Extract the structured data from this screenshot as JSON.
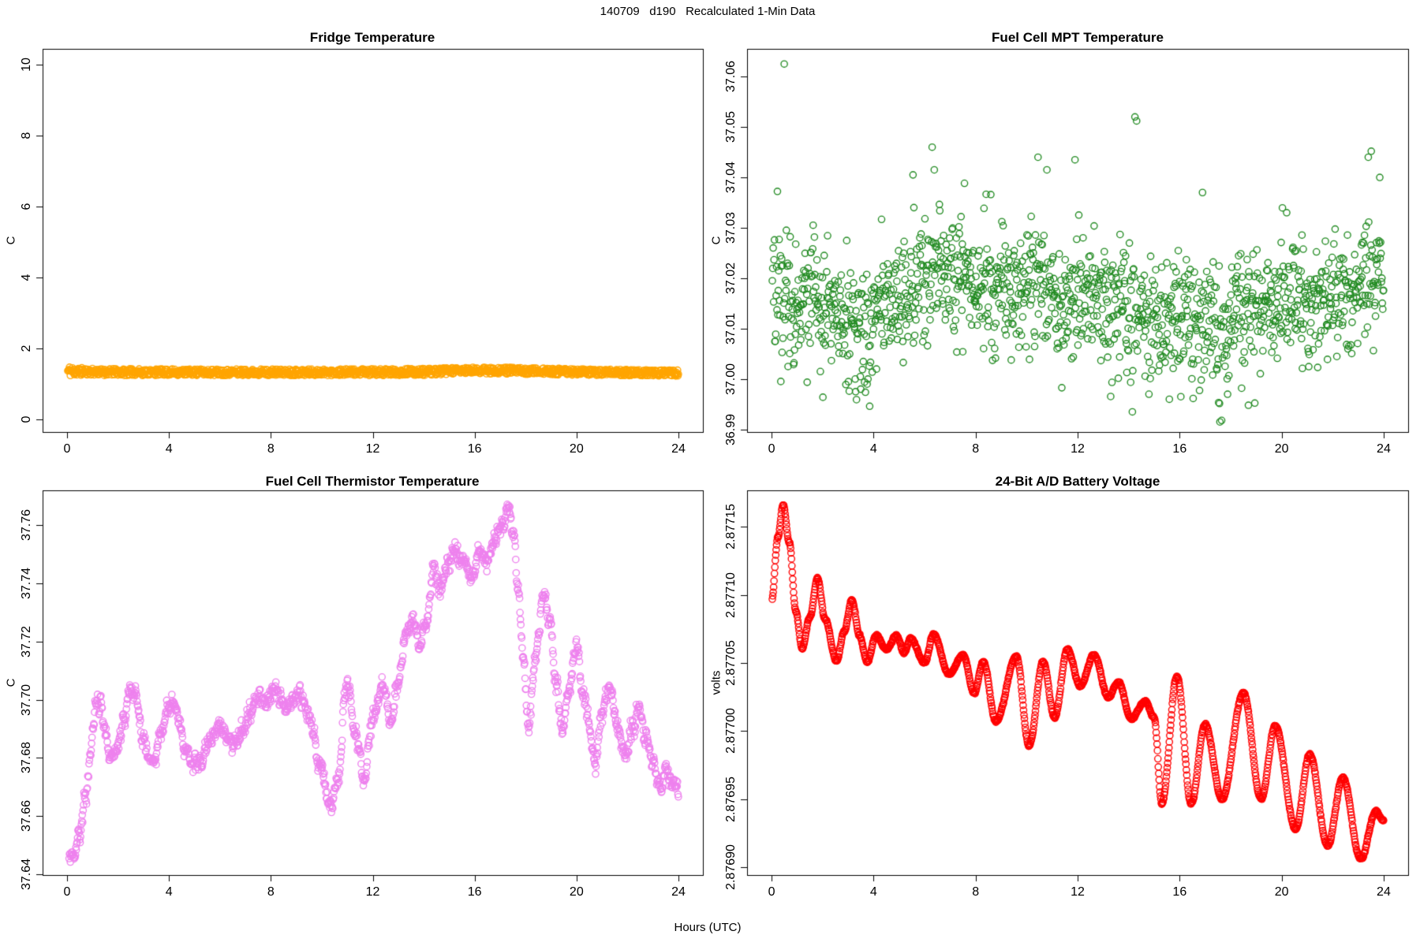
{
  "main_title": "140709   d190   Recalculated 1-Min Data",
  "xlabel": "Hours (UTC)",
  "background_color": "#FFFFFF",
  "axis_color": "#000000",
  "chart_data": [
    {
      "type": "scatter",
      "title": "Fridge Temperature",
      "ylabel": "C",
      "point_color": "#FFA500",
      "marker": "open-circle",
      "grid": false,
      "xlim": [
        -0.96,
        24.96
      ],
      "ylim": [
        -0.36,
        10.44
      ],
      "xtick_values": [
        0,
        4,
        8,
        12,
        16,
        20,
        24
      ],
      "xtick_labels": [
        "0",
        "4",
        "8",
        "12",
        "16",
        "20",
        "24"
      ],
      "ytick_values": [
        0,
        2,
        4,
        6,
        8,
        10
      ],
      "ytick_labels": [
        "0",
        "2",
        "4",
        "6",
        "8",
        "10"
      ],
      "points_per_hour": 60,
      "t_start": 0.03,
      "t_end": 24,
      "seed": 11,
      "noise_dist": "uniform",
      "noise_ar": 0,
      "noise_sd": 0.09,
      "noise_sd_keypoints": [
        [
          0,
          0.16
        ],
        [
          0.3,
          0.13
        ],
        [
          0.8,
          0.095
        ],
        [
          6,
          0.09
        ],
        [
          15,
          0.095
        ],
        [
          24,
          0.085
        ]
      ],
      "trend_keypoints": [
        [
          0,
          1.36
        ],
        [
          0.5,
          1.345
        ],
        [
          1.5,
          1.33
        ],
        [
          4,
          1.325
        ],
        [
          8,
          1.325
        ],
        [
          12,
          1.325
        ],
        [
          14,
          1.335
        ],
        [
          15.5,
          1.365
        ],
        [
          16.5,
          1.375
        ],
        [
          17.5,
          1.37
        ],
        [
          19,
          1.345
        ],
        [
          21,
          1.325
        ],
        [
          23,
          1.305
        ],
        [
          24,
          1.3
        ]
      ],
      "outliers": []
    },
    {
      "type": "scatter",
      "title": "Fuel Cell MPT Temperature",
      "ylabel": "C",
      "point_color": "#228B22",
      "marker": "open-circle",
      "grid": false,
      "xlim": [
        -0.96,
        24.96
      ],
      "ylim": [
        36.9895,
        37.0655
      ],
      "xtick_values": [
        0,
        4,
        8,
        12,
        16,
        20,
        24
      ],
      "xtick_labels": [
        "0",
        "4",
        "8",
        "12",
        "16",
        "20",
        "24"
      ],
      "ytick_values": [
        36.99,
        37.0,
        37.01,
        37.02,
        37.03,
        37.04,
        37.05,
        37.06
      ],
      "ytick_labels": [
        "36.99",
        "37.00",
        "37.01",
        "37.02",
        "37.03",
        "37.04",
        "37.05",
        "37.06"
      ],
      "points_per_hour": 60,
      "t_start": 0.03,
      "t_end": 24,
      "seed": 22,
      "noise_dist": "gaussian",
      "noise_ar": 0,
      "noise_sd": 0.0062,
      "trend_keypoints": [
        [
          0,
          37.019
        ],
        [
          1,
          37.016
        ],
        [
          2,
          37.015
        ],
        [
          3,
          37.01
        ],
        [
          3.6,
          37.008
        ],
        [
          4.5,
          37.016
        ],
        [
          5.5,
          37.018
        ],
        [
          6.5,
          37.02
        ],
        [
          7.5,
          37.021
        ],
        [
          8.5,
          37.018
        ],
        [
          9.5,
          37.018
        ],
        [
          10.5,
          37.019
        ],
        [
          11.5,
          37.016
        ],
        [
          12.5,
          37.015
        ],
        [
          13.5,
          37.014
        ],
        [
          14.5,
          37.012
        ],
        [
          15.5,
          37.011
        ],
        [
          16.5,
          37.013
        ],
        [
          17.5,
          37.009
        ],
        [
          18.5,
          37.013
        ],
        [
          19.5,
          37.015
        ],
        [
          20.5,
          37.016
        ],
        [
          21.5,
          37.015
        ],
        [
          22.5,
          37.017
        ],
        [
          23.25,
          37.019
        ],
        [
          24,
          37.021
        ]
      ],
      "outliers": [
        [
          0.5,
          37.0625
        ],
        [
          3.3,
          36.9975
        ],
        [
          3.5,
          36.998
        ],
        [
          5.55,
          37.0405
        ],
        [
          6.3,
          37.046
        ],
        [
          6.38,
          37.0415
        ],
        [
          10.45,
          37.044
        ],
        [
          10.8,
          37.0415
        ],
        [
          11.9,
          37.0435
        ],
        [
          14.15,
          36.9935
        ],
        [
          14.25,
          37.052
        ],
        [
          14.32,
          37.0512
        ],
        [
          14.8,
          36.997
        ],
        [
          15.6,
          36.996
        ],
        [
          16.05,
          36.9965
        ],
        [
          16.9,
          37.037
        ],
        [
          17.58,
          36.9915
        ],
        [
          17.65,
          36.9918
        ],
        [
          20.2,
          37.033
        ],
        [
          23.4,
          37.044
        ],
        [
          23.52,
          37.0452
        ],
        [
          23.85,
          37.04
        ]
      ]
    },
    {
      "type": "scatter",
      "title": "Fuel Cell Thermistor Temperature",
      "ylabel": "C",
      "point_color": "#EE82EE",
      "marker": "open-circle",
      "grid": false,
      "xlim": [
        -0.96,
        24.96
      ],
      "ylim": [
        37.6397,
        37.772
      ],
      "xtick_values": [
        0,
        4,
        8,
        12,
        16,
        20,
        24
      ],
      "xtick_labels": [
        "0",
        "4",
        "8",
        "12",
        "16",
        "20",
        "24"
      ],
      "ytick_values": [
        37.64,
        37.66,
        37.68,
        37.7,
        37.72,
        37.74,
        37.76
      ],
      "ytick_labels": [
        "37.64",
        "37.66",
        "37.68",
        "37.70",
        "37.72",
        "37.74",
        "37.76"
      ],
      "points_per_hour": 60,
      "t_start": 0.08,
      "t_end": 24,
      "seed": 33,
      "noise_dist": "gaussian",
      "noise_ar": 0.45,
      "noise_sd": 0.0017,
      "trend_keypoints": [
        [
          0.1,
          37.6455
        ],
        [
          0.3,
          37.647
        ],
        [
          0.5,
          37.654
        ],
        [
          0.7,
          37.665
        ],
        [
          0.9,
          37.68
        ],
        [
          1.15,
          37.7
        ],
        [
          1.3,
          37.698
        ],
        [
          1.55,
          37.686
        ],
        [
          1.75,
          37.68
        ],
        [
          2.0,
          37.686
        ],
        [
          2.25,
          37.693
        ],
        [
          2.5,
          37.704
        ],
        [
          2.7,
          37.699
        ],
        [
          2.95,
          37.688
        ],
        [
          3.2,
          37.68
        ],
        [
          3.45,
          37.68
        ],
        [
          3.7,
          37.689
        ],
        [
          3.95,
          37.697
        ],
        [
          4.15,
          37.7
        ],
        [
          4.4,
          37.693
        ],
        [
          4.65,
          37.683
        ],
        [
          4.9,
          37.6775
        ],
        [
          5.15,
          37.6785
        ],
        [
          5.45,
          37.683
        ],
        [
          5.75,
          37.687
        ],
        [
          6.0,
          37.691
        ],
        [
          6.3,
          37.687
        ],
        [
          6.6,
          37.684
        ],
        [
          6.9,
          37.689
        ],
        [
          7.2,
          37.695
        ],
        [
          7.55,
          37.702
        ],
        [
          7.85,
          37.699
        ],
        [
          8.1,
          37.7035
        ],
        [
          8.35,
          37.7
        ],
        [
          8.6,
          37.696
        ],
        [
          8.85,
          37.7
        ],
        [
          9.1,
          37.702
        ],
        [
          9.4,
          37.697
        ],
        [
          9.65,
          37.689
        ],
        [
          9.9,
          37.677
        ],
        [
          10.35,
          37.664
        ],
        [
          10.6,
          37.673
        ],
        [
          11.0,
          37.7055
        ],
        [
          11.3,
          37.69
        ],
        [
          11.65,
          37.672
        ],
        [
          12.0,
          37.694
        ],
        [
          12.45,
          37.7045
        ],
        [
          12.7,
          37.692
        ],
        [
          13.0,
          37.706
        ],
        [
          13.3,
          37.722
        ],
        [
          13.6,
          37.727
        ],
        [
          13.85,
          37.719
        ],
        [
          14.1,
          37.725
        ],
        [
          14.4,
          37.744
        ],
        [
          14.65,
          37.737
        ],
        [
          14.9,
          37.745
        ],
        [
          15.2,
          37.752
        ],
        [
          15.5,
          37.748
        ],
        [
          15.9,
          37.742
        ],
        [
          16.2,
          37.752
        ],
        [
          16.5,
          37.747
        ],
        [
          16.8,
          37.7555
        ],
        [
          17.05,
          37.758
        ],
        [
          17.3,
          37.767
        ],
        [
          17.5,
          37.76
        ],
        [
          17.7,
          37.74
        ],
        [
          17.9,
          37.716
        ],
        [
          18.1,
          37.69
        ],
        [
          18.4,
          37.716
        ],
        [
          18.7,
          37.736
        ],
        [
          18.95,
          37.727
        ],
        [
          19.2,
          37.706
        ],
        [
          19.45,
          37.69
        ],
        [
          19.7,
          37.703
        ],
        [
          20.0,
          37.718
        ],
        [
          20.3,
          37.7
        ],
        [
          20.75,
          37.679
        ],
        [
          21.0,
          37.695
        ],
        [
          21.3,
          37.706
        ],
        [
          21.6,
          37.692
        ],
        [
          21.9,
          37.681
        ],
        [
          22.2,
          37.69
        ],
        [
          22.45,
          37.698
        ],
        [
          22.7,
          37.688
        ],
        [
          23.0,
          37.678
        ],
        [
          23.3,
          37.67
        ],
        [
          23.55,
          37.677
        ],
        [
          23.75,
          37.672
        ],
        [
          24,
          37.669
        ]
      ],
      "outliers": []
    },
    {
      "type": "scatter",
      "title": "24-Bit A/D Battery Voltage",
      "ylabel": "volts",
      "point_color": "#FF0000",
      "marker": "open-circle",
      "grid": false,
      "xlim": [
        -0.96,
        24.96
      ],
      "ylim": [
        2.8768945,
        2.8771766
      ],
      "xtick_values": [
        0,
        4,
        8,
        12,
        16,
        20,
        24
      ],
      "xtick_labels": [
        "0",
        "4",
        "8",
        "12",
        "16",
        "20",
        "24"
      ],
      "ytick_values": [
        2.8769,
        2.87695,
        2.877,
        2.87705,
        2.8771,
        2.87715
      ],
      "ytick_labels": [
        "2.87690",
        "2.87695",
        "2.87700",
        "2.87705",
        "2.87710",
        "2.87715"
      ],
      "points_per_hour": 60,
      "t_start": 0.03,
      "t_end": 24,
      "seed": 44,
      "noise_dist": "gaussian",
      "noise_ar": 0.4,
      "noise_sd": 4e-07,
      "trend_keypoints": [
        [
          0,
          2.877095
        ],
        [
          0.25,
          2.877142
        ],
        [
          0.45,
          2.877166
        ],
        [
          0.7,
          2.877138
        ],
        [
          0.95,
          2.877088
        ],
        [
          1.2,
          2.877061
        ],
        [
          1.5,
          2.877083
        ],
        [
          1.8,
          2.877112
        ],
        [
          2.1,
          2.877082
        ],
        [
          2.55,
          2.877051
        ],
        [
          2.85,
          2.877073
        ],
        [
          3.15,
          2.877096
        ],
        [
          3.45,
          2.87707
        ],
        [
          3.75,
          2.877051
        ],
        [
          4.1,
          2.87707
        ],
        [
          4.5,
          2.87706
        ],
        [
          4.9,
          2.87707
        ],
        [
          5.2,
          2.877057
        ],
        [
          5.45,
          2.877068
        ],
        [
          6.0,
          2.87705
        ],
        [
          6.35,
          2.877071
        ],
        [
          6.95,
          2.877042
        ],
        [
          7.5,
          2.877056
        ],
        [
          7.95,
          2.877028
        ],
        [
          8.3,
          2.877051
        ],
        [
          8.8,
          2.877007
        ],
        [
          9.6,
          2.877055
        ],
        [
          10.1,
          2.876989
        ],
        [
          10.65,
          2.877051
        ],
        [
          11.1,
          2.87701
        ],
        [
          11.6,
          2.87706
        ],
        [
          12.1,
          2.877033
        ],
        [
          12.65,
          2.877056
        ],
        [
          13.2,
          2.877025
        ],
        [
          13.6,
          2.877036
        ],
        [
          14.1,
          2.877009
        ],
        [
          14.65,
          2.877022
        ],
        [
          15.0,
          2.87701
        ],
        [
          15.3,
          2.876947
        ],
        [
          15.9,
          2.87704
        ],
        [
          16.45,
          2.876947
        ],
        [
          17.0,
          2.877005
        ],
        [
          17.66,
          2.87695
        ],
        [
          18.5,
          2.877028
        ],
        [
          19.2,
          2.87695
        ],
        [
          19.75,
          2.877004
        ],
        [
          20.55,
          2.876928
        ],
        [
          21.1,
          2.876983
        ],
        [
          21.8,
          2.876916
        ],
        [
          22.4,
          2.876966
        ],
        [
          23.1,
          2.876906
        ],
        [
          23.7,
          2.876941
        ],
        [
          24,
          2.876934
        ]
      ],
      "outliers": []
    }
  ]
}
